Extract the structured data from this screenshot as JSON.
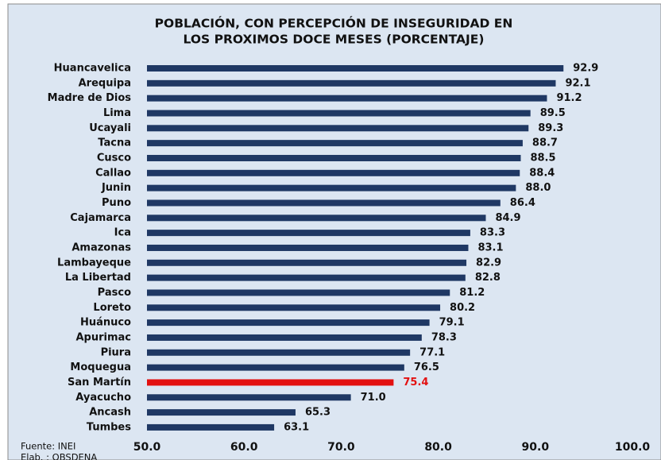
{
  "chart_data": {
    "type": "barh",
    "title": [
      "POBLACIÓN, CON PERCEPCIÓN DE INSEGURIDAD EN",
      "LOS PROXIMOS DOCE MESES (PORCENTAJE)"
    ],
    "categories": [
      "Huancavelica",
      "Arequipa",
      "Madre de Dios",
      "Lima",
      "Ucayali",
      "Tacna",
      "Cusco",
      "Callao",
      "Junin",
      "Puno",
      "Cajamarca",
      "Ica",
      "Amazonas",
      "Lambayeque",
      "La Libertad",
      "Pasco",
      "Loreto",
      "Huánuco",
      "Apurimac",
      "Piura",
      "Moquegua",
      "San Martín",
      "Ayacucho",
      "Ancash",
      "Tumbes"
    ],
    "values": [
      92.9,
      92.1,
      91.2,
      89.5,
      89.3,
      88.7,
      88.5,
      88.4,
      88.0,
      86.4,
      84.9,
      83.3,
      83.1,
      82.9,
      82.8,
      81.2,
      80.2,
      79.1,
      78.3,
      77.1,
      76.5,
      75.4,
      71.0,
      65.3,
      63.1
    ],
    "value_labels": [
      "92.9",
      "92.1",
      "91.2",
      "89.5",
      "89.3",
      "88.7",
      "88.5",
      "88.4",
      "88.0",
      "86.4",
      "84.9",
      "83.3",
      "83.1",
      "82.9",
      "82.8",
      "81.2",
      "80.2",
      "79.1",
      "78.3",
      "77.1",
      "76.5",
      "75.4",
      "71.0",
      "65.3",
      "63.1"
    ],
    "colors": [
      "#1f3864",
      "#1f3864",
      "#1f3864",
      "#1f3864",
      "#1f3864",
      "#1f3864",
      "#1f3864",
      "#1f3864",
      "#1f3864",
      "#1f3864",
      "#1f3864",
      "#1f3864",
      "#1f3864",
      "#1f3864",
      "#1f3864",
      "#1f3864",
      "#1f3864",
      "#1f3864",
      "#1f3864",
      "#1f3864",
      "#1f3864",
      "#e31010",
      "#1f3864",
      "#1f3864",
      "#1f3864"
    ],
    "xlim": [
      50,
      100
    ],
    "xticks": [
      {
        "value": 50,
        "label": "50.0"
      },
      {
        "value": 60,
        "label": "60.0"
      },
      {
        "value": 70,
        "label": "70.0"
      },
      {
        "value": 80,
        "label": "80.0"
      },
      {
        "value": 90,
        "label": "90.0"
      },
      {
        "value": 100,
        "label": "100.0"
      }
    ],
    "footnotes": [
      "Fuente: INEI",
      "Elab. : OBSDENA"
    ]
  }
}
